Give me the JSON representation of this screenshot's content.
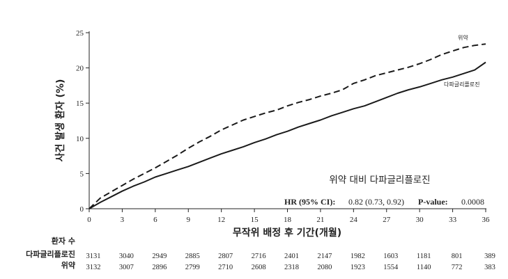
{
  "chart_data": {
    "type": "line",
    "xlabel": "무작위 배정 후 기간(개월)",
    "ylabel": "사건 발생 환자 (%)",
    "xlim": [
      0,
      36
    ],
    "ylim": [
      0,
      25
    ],
    "xticks": [
      0,
      3,
      6,
      9,
      12,
      15,
      18,
      21,
      24,
      27,
      30,
      33,
      36
    ],
    "yticks": [
      0,
      5,
      10,
      15,
      20,
      25
    ],
    "grid": false,
    "series": [
      {
        "name": "위약",
        "style": "dashed",
        "color": "#1a1a1a",
        "x": [
          0,
          1,
          2,
          3,
          4,
          5,
          6,
          7,
          8,
          9,
          10,
          11,
          12,
          13,
          14,
          15,
          16,
          17,
          18,
          19,
          20,
          21,
          22,
          23,
          24,
          25,
          26,
          27,
          28,
          29,
          30,
          31,
          32,
          33,
          34,
          35,
          36
        ],
        "y": [
          0,
          1.5,
          2.4,
          3.3,
          4.2,
          5.0,
          5.8,
          6.7,
          7.6,
          8.6,
          9.5,
          10.3,
          11.2,
          11.9,
          12.6,
          13.1,
          13.6,
          14.0,
          14.6,
          15.1,
          15.5,
          16.0,
          16.4,
          16.9,
          17.8,
          18.3,
          18.9,
          19.3,
          19.7,
          20.1,
          20.6,
          21.2,
          21.9,
          22.4,
          22.9,
          23.2,
          23.4
        ]
      },
      {
        "name": "다파글리플로진",
        "style": "solid",
        "color": "#1a1a1a",
        "x": [
          0,
          1,
          2,
          3,
          4,
          5,
          6,
          7,
          8,
          9,
          10,
          11,
          12,
          13,
          14,
          15,
          16,
          17,
          18,
          19,
          20,
          21,
          22,
          23,
          24,
          25,
          26,
          27,
          28,
          29,
          30,
          31,
          32,
          33,
          34,
          35,
          36
        ],
        "y": [
          0,
          0.9,
          1.7,
          2.5,
          3.2,
          3.8,
          4.5,
          5.0,
          5.5,
          6.0,
          6.6,
          7.2,
          7.8,
          8.3,
          8.8,
          9.4,
          9.9,
          10.5,
          11.0,
          11.6,
          12.1,
          12.6,
          13.2,
          13.7,
          14.2,
          14.6,
          15.2,
          15.8,
          16.4,
          16.9,
          17.3,
          17.8,
          18.3,
          18.7,
          19.2,
          19.7,
          20.8
        ]
      }
    ],
    "annotation": {
      "title": "위약 대비 다파글리플로진",
      "hr_label": "HR (95% CI):",
      "hr_value": "0.82 (0.73, 0.92)",
      "p_label": "P-value:",
      "p_value": "0.0008"
    },
    "at_risk": {
      "header": "환자 수",
      "rows": [
        {
          "label": "다파글리플로진",
          "values": [
            "3131",
            "3040",
            "2949",
            "2885",
            "2807",
            "2716",
            "2401",
            "2147",
            "1982",
            "1603",
            "1181",
            "801",
            "389"
          ]
        },
        {
          "label": "위약",
          "values": [
            "3132",
            "3007",
            "2896",
            "2799",
            "2710",
            "2608",
            "2318",
            "2080",
            "1923",
            "1554",
            "1140",
            "772",
            "383"
          ]
        }
      ]
    }
  }
}
